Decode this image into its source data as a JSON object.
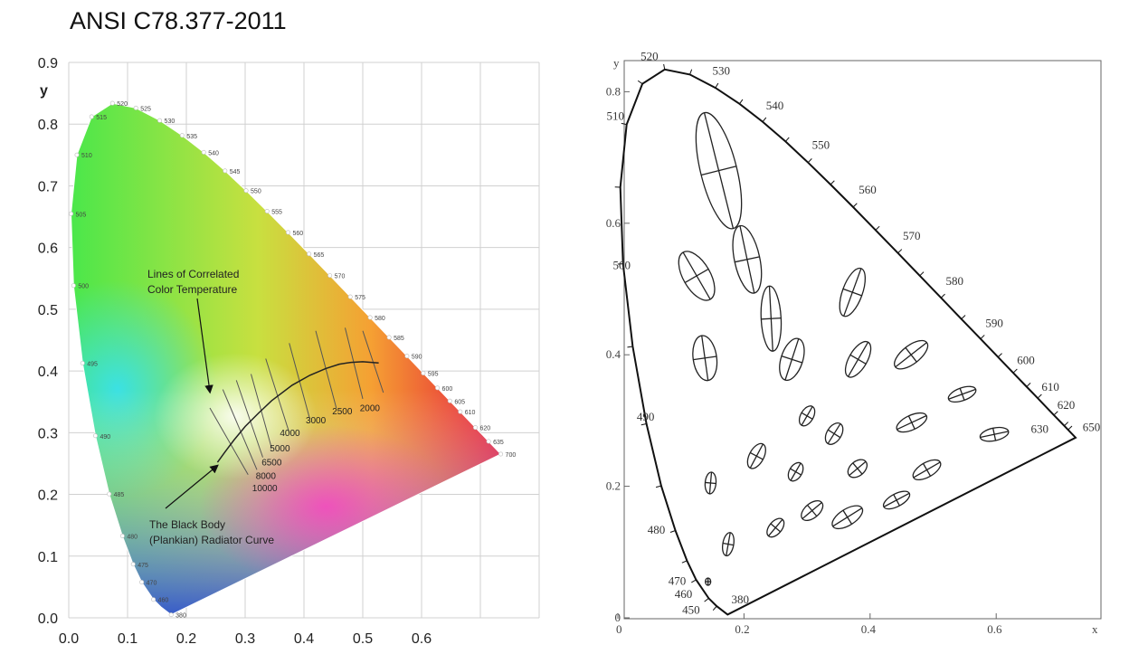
{
  "page_title": "ANSI C78.377-2011",
  "left_diagram": {
    "y_axis_label": "y",
    "x_ticks": [
      "0.0",
      "0.1",
      "0.2",
      "0.3",
      "0.4",
      "0.5",
      "0.6"
    ],
    "y_ticks": [
      "0.0",
      "0.1",
      "0.2",
      "0.3",
      "0.4",
      "0.5",
      "0.6",
      "0.7",
      "0.8",
      "0.9"
    ],
    "wavelength_labels": [
      "380",
      "460",
      "470",
      "475",
      "480",
      "485",
      "490",
      "495",
      "500",
      "505",
      "510",
      "515",
      "520",
      "525",
      "530",
      "535",
      "540",
      "545",
      "550",
      "555",
      "560",
      "565",
      "570",
      "575",
      "580",
      "585",
      "590",
      "595",
      "600",
      "605",
      "610",
      "620",
      "635",
      "700"
    ],
    "cct_labels": [
      "2000",
      "2500",
      "3000",
      "4000",
      "5000",
      "6500",
      "8000",
      "10000"
    ],
    "annotation_cct": [
      "Lines of Correlated",
      "Color Temperature"
    ],
    "annotation_blackbody": [
      "The Black Body",
      "(Plankian) Radiator Curve"
    ]
  },
  "right_diagram": {
    "y_axis_label": "y",
    "x_axis_label": "x",
    "x_ticks": [
      "0",
      "0.2",
      "0.4",
      "0.6"
    ],
    "y_ticks": [
      "0",
      "0.2",
      "0.4",
      "0.6",
      "0.8"
    ],
    "wavelength_labels": [
      "380",
      "450",
      "460",
      "470",
      "480",
      "490",
      "500",
      "510",
      "520",
      "530",
      "540",
      "550",
      "560",
      "570",
      "580",
      "590",
      "600",
      "610",
      "620",
      "630",
      "650"
    ]
  },
  "colors": {
    "spectral_red": "#e5103a",
    "spectral_green": "#3fe84b",
    "spectral_blue": "#1a3ad8",
    "grid": "#d0d0d0"
  }
}
